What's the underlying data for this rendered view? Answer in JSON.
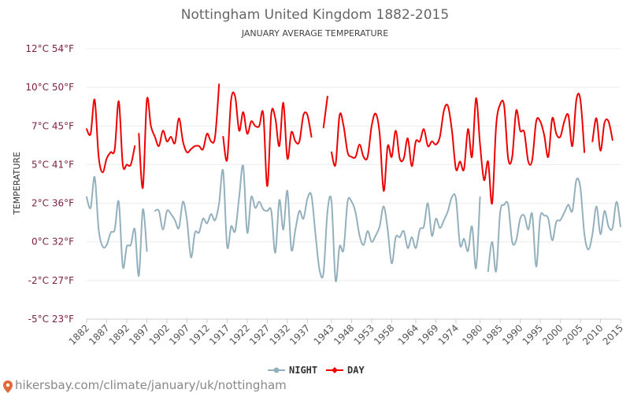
{
  "chart_data": {
    "type": "line",
    "title": "Nottingham United Kingdom 1882-2015",
    "subtitle": "JANUARY AVERAGE TEMPERATURE",
    "ylabel": "TEMPERATURE",
    "xlabel": "",
    "ylim": [
      -5,
      12
    ],
    "yticks": [
      -5,
      -2.5,
      0,
      2.5,
      5,
      7.5,
      10,
      12.5
    ],
    "ytick_labels": [
      "-5°C 23°F",
      "-2°C 27°F",
      "0°C 32°F",
      "2°C 36°F",
      "5°C 41°F",
      "7°C 45°F",
      "10°C 50°F",
      "12°C 54°F"
    ],
    "xlim": [
      1882,
      2015
    ],
    "xticks": [
      1882,
      1887,
      1892,
      1897,
      1902,
      1907,
      1912,
      1917,
      1922,
      1927,
      1932,
      1937,
      1943,
      1948,
      1953,
      1958,
      1964,
      1969,
      1974,
      1980,
      1985,
      1990,
      1995,
      2000,
      2005,
      2010,
      2015
    ],
    "legend_position": "bottom-center",
    "grid": true,
    "series": [
      {
        "name": "NIGHT",
        "color": "#93b0bd",
        "points": [
          [
            1882,
            2.9
          ],
          [
            1883,
            2.2
          ],
          [
            1884,
            4.2
          ],
          [
            1885,
            0.8
          ],
          [
            1886,
            -0.3
          ],
          [
            1887,
            -0.2
          ],
          [
            1888,
            0.6
          ],
          [
            1889,
            0.8
          ],
          [
            1890,
            2.6
          ],
          [
            1891,
            -1.6
          ],
          [
            1892,
            -0.3
          ],
          [
            1893,
            -0.2
          ],
          [
            1894,
            0.8
          ],
          [
            1895,
            -2.2
          ],
          [
            1896,
            2.1
          ],
          [
            1897,
            -0.6
          ],
          [
            null,
            null
          ],
          [
            1899,
            2.0
          ],
          [
            1900,
            2.0
          ],
          [
            1901,
            0.8
          ],
          [
            1902,
            2.0
          ],
          [
            1903,
            1.8
          ],
          [
            1904,
            1.4
          ],
          [
            1905,
            0.9
          ],
          [
            1906,
            2.6
          ],
          [
            1907,
            1.4
          ],
          [
            1908,
            -1.0
          ],
          [
            1909,
            0.6
          ],
          [
            1910,
            0.6
          ],
          [
            1911,
            1.5
          ],
          [
            1912,
            1.2
          ],
          [
            1913,
            1.8
          ],
          [
            1914,
            1.4
          ],
          [
            1915,
            2.5
          ],
          [
            1916,
            4.6
          ],
          [
            1917,
            -0.3
          ],
          [
            1918,
            1.0
          ],
          [
            1919,
            0.7
          ],
          [
            1920,
            2.9
          ],
          [
            1921,
            4.9
          ],
          [
            1922,
            0.6
          ],
          [
            1923,
            2.9
          ],
          [
            1924,
            2.2
          ],
          [
            1925,
            2.6
          ],
          [
            1926,
            2.1
          ],
          [
            1927,
            2.0
          ],
          [
            1928,
            2.0
          ],
          [
            1929,
            -0.7
          ],
          [
            1930,
            2.7
          ],
          [
            1931,
            0.8
          ],
          [
            1932,
            3.3
          ],
          [
            1933,
            -0.5
          ],
          [
            1934,
            0.8
          ],
          [
            1935,
            2.0
          ],
          [
            1936,
            1.5
          ],
          [
            1937,
            2.8
          ],
          [
            1938,
            3.0
          ],
          [
            1939,
            0.5
          ],
          [
            1940,
            -1.8
          ],
          [
            1941,
            -2.0
          ],
          [
            1942,
            2.0
          ],
          [
            1943,
            2.6
          ],
          [
            1944,
            -2.5
          ],
          [
            1945,
            -0.3
          ],
          [
            1946,
            -0.5
          ],
          [
            1947,
            2.6
          ],
          [
            1948,
            2.6
          ],
          [
            1949,
            1.9
          ],
          [
            1950,
            0.4
          ],
          [
            1951,
            -0.2
          ],
          [
            1952,
            0.7
          ],
          [
            1953,
            0.0
          ],
          [
            1954,
            0.4
          ],
          [
            1955,
            1.0
          ],
          [
            1956,
            2.3
          ],
          [
            1957,
            0.8
          ],
          [
            1958,
            -1.4
          ],
          [
            1959,
            0.3
          ],
          [
            1960,
            0.3
          ],
          [
            1961,
            0.7
          ],
          [
            1962,
            -0.4
          ],
          [
            1963,
            0.3
          ],
          [
            1964,
            -0.4
          ],
          [
            1965,
            0.8
          ],
          [
            1966,
            1.0
          ],
          [
            1967,
            2.5
          ],
          [
            1968,
            0.4
          ],
          [
            1969,
            1.5
          ],
          [
            1970,
            0.9
          ],
          [
            1971,
            1.4
          ],
          [
            1972,
            2.0
          ],
          [
            1973,
            2.9
          ],
          [
            1974,
            2.8
          ],
          [
            1975,
            -0.2
          ],
          [
            1976,
            0.2
          ],
          [
            1977,
            -0.6
          ],
          [
            1978,
            1.0
          ],
          [
            1979,
            -1.7
          ],
          [
            1980,
            2.9
          ],
          [
            null,
            null
          ],
          [
            1982,
            -1.9
          ],
          [
            1983,
            0.0
          ],
          [
            1984,
            -1.9
          ],
          [
            1985,
            1.9
          ],
          [
            1986,
            2.4
          ],
          [
            1987,
            2.4
          ],
          [
            1988,
            0.0
          ],
          [
            1989,
            0.1
          ],
          [
            1990,
            1.5
          ],
          [
            1991,
            1.7
          ],
          [
            1992,
            0.8
          ],
          [
            1993,
            1.8
          ],
          [
            1994,
            -1.6
          ],
          [
            1995,
            1.6
          ],
          [
            1996,
            1.7
          ],
          [
            1997,
            1.5
          ],
          [
            1998,
            0.1
          ],
          [
            1999,
            1.3
          ],
          [
            2000,
            1.4
          ],
          [
            2001,
            1.9
          ],
          [
            2002,
            2.4
          ],
          [
            2003,
            2.0
          ],
          [
            2004,
            4.0
          ],
          [
            2005,
            3.5
          ],
          [
            2006,
            0.5
          ],
          [
            2007,
            -0.5
          ],
          [
            2008,
            0.5
          ],
          [
            2009,
            2.3
          ],
          [
            2010,
            0.5
          ],
          [
            2011,
            2.0
          ],
          [
            2012,
            1.0
          ],
          [
            2013,
            0.9
          ],
          [
            2014,
            2.6
          ],
          [
            2015,
            1.0
          ]
        ]
      },
      {
        "name": "DAY",
        "color": "#ee0000",
        "points": [
          [
            1882,
            7.3
          ],
          [
            1883,
            7.0
          ],
          [
            1884,
            9.2
          ],
          [
            1885,
            5.5
          ],
          [
            1886,
            4.5
          ],
          [
            1887,
            5.4
          ],
          [
            1888,
            5.8
          ],
          [
            1889,
            6.0
          ],
          [
            1890,
            9.1
          ],
          [
            1891,
            5.0
          ],
          [
            1892,
            5.0
          ],
          [
            1893,
            5.0
          ],
          [
            1894,
            6.2
          ],
          [
            null,
            null
          ],
          [
            1895,
            7.0
          ],
          [
            1896,
            3.5
          ],
          [
            1897,
            9.2
          ],
          [
            1898,
            7.5
          ],
          [
            1899,
            6.8
          ],
          [
            1900,
            6.2
          ],
          [
            1901,
            7.2
          ],
          [
            1902,
            6.5
          ],
          [
            1903,
            6.8
          ],
          [
            1904,
            6.4
          ],
          [
            1905,
            8.0
          ],
          [
            1906,
            6.5
          ],
          [
            1907,
            5.8
          ],
          [
            1908,
            6.0
          ],
          [
            1909,
            6.2
          ],
          [
            1910,
            6.2
          ],
          [
            1911,
            6.0
          ],
          [
            1912,
            7.0
          ],
          [
            1913,
            6.5
          ],
          [
            1914,
            6.8
          ],
          [
            1915,
            10.2
          ],
          [
            null,
            null
          ],
          [
            1916,
            6.8
          ],
          [
            1917,
            5.3
          ],
          [
            1918,
            9.2
          ],
          [
            1919,
            9.4
          ],
          [
            1920,
            7.2
          ],
          [
            1921,
            8.4
          ],
          [
            1922,
            7.0
          ],
          [
            1923,
            7.8
          ],
          [
            1924,
            7.5
          ],
          [
            1925,
            7.5
          ],
          [
            1926,
            8.3
          ],
          [
            1927,
            3.6
          ],
          [
            1928,
            8.3
          ],
          [
            1929,
            8.0
          ],
          [
            1930,
            6.2
          ],
          [
            1931,
            9.0
          ],
          [
            1932,
            5.4
          ],
          [
            1933,
            7.1
          ],
          [
            1934,
            6.5
          ],
          [
            1935,
            6.5
          ],
          [
            1936,
            8.2
          ],
          [
            1937,
            8.2
          ],
          [
            1938,
            6.8
          ],
          [
            null,
            null
          ],
          [
            1941,
            7.4
          ],
          [
            1942,
            9.4
          ],
          [
            null,
            null
          ],
          [
            1943,
            5.8
          ],
          [
            1944,
            5.0
          ],
          [
            1945,
            8.2
          ],
          [
            1946,
            7.5
          ],
          [
            1947,
            5.8
          ],
          [
            1948,
            5.5
          ],
          [
            1949,
            5.5
          ],
          [
            1950,
            6.3
          ],
          [
            1951,
            5.5
          ],
          [
            1952,
            5.5
          ],
          [
            1953,
            7.5
          ],
          [
            1954,
            8.3
          ],
          [
            1955,
            7.0
          ],
          [
            1956,
            3.3
          ],
          [
            1957,
            6.2
          ],
          [
            1958,
            5.5
          ],
          [
            1959,
            7.2
          ],
          [
            1960,
            5.4
          ],
          [
            1961,
            5.4
          ],
          [
            1962,
            6.7
          ],
          [
            1963,
            4.9
          ],
          [
            1964,
            6.5
          ],
          [
            1965,
            6.5
          ],
          [
            1966,
            7.3
          ],
          [
            1967,
            6.2
          ],
          [
            1968,
            6.5
          ],
          [
            1969,
            6.3
          ],
          [
            1970,
            6.8
          ],
          [
            1971,
            8.5
          ],
          [
            1972,
            8.8
          ],
          [
            1973,
            7.2
          ],
          [
            1974,
            4.7
          ],
          [
            1975,
            5.2
          ],
          [
            1976,
            4.7
          ],
          [
            1977,
            7.3
          ],
          [
            1978,
            5.5
          ],
          [
            1979,
            9.3
          ],
          [
            1980,
            6.3
          ],
          [
            1981,
            4.0
          ],
          [
            1982,
            5.2
          ],
          [
            1983,
            2.5
          ],
          [
            1984,
            7.5
          ],
          [
            1985,
            8.9
          ],
          [
            1986,
            8.8
          ],
          [
            1987,
            5.4
          ],
          [
            1988,
            5.5
          ],
          [
            1989,
            8.5
          ],
          [
            1990,
            7.2
          ],
          [
            1991,
            7.1
          ],
          [
            1992,
            5.2
          ],
          [
            1993,
            5.3
          ],
          [
            1994,
            7.8
          ],
          [
            1995,
            7.8
          ],
          [
            1996,
            6.9
          ],
          [
            1997,
            5.5
          ],
          [
            1998,
            8.0
          ],
          [
            1999,
            7.0
          ],
          [
            2000,
            6.8
          ],
          [
            2001,
            7.8
          ],
          [
            2002,
            8.2
          ],
          [
            2003,
            6.2
          ],
          [
            2004,
            9.2
          ],
          [
            2005,
            9.2
          ],
          [
            2006,
            5.8
          ],
          [
            null,
            null
          ],
          [
            2008,
            6.5
          ],
          [
            2009,
            8.0
          ],
          [
            2010,
            5.9
          ],
          [
            2011,
            7.7
          ],
          [
            2012,
            7.8
          ],
          [
            2013,
            6.6
          ]
        ]
      }
    ]
  },
  "footer": {
    "url": "hikersbay.com/climate/january/uk/nottingham"
  }
}
